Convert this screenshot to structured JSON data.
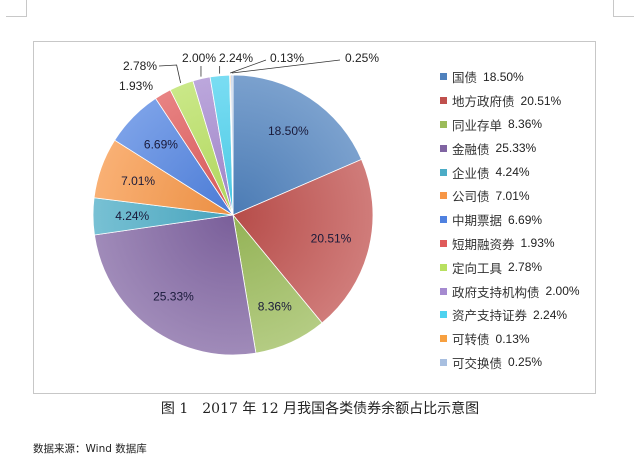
{
  "chart_data": {
    "type": "pie",
    "title": "",
    "start_angle": "12 o'clock, clockwise",
    "categories": [
      "国债",
      "地方政府债",
      "同业存单",
      "金融债",
      "企业债",
      "公司债",
      "中期票据",
      "短期融资券",
      "定向工具",
      "政府支持机构债",
      "资产支持证券",
      "可转债",
      "可交换债"
    ],
    "values": [
      18.5,
      20.51,
      8.36,
      25.33,
      4.24,
      7.01,
      6.69,
      1.93,
      2.78,
      2.0,
      2.24,
      0.13,
      0.25
    ],
    "labels": [
      "18.50%",
      "20.51%",
      "8.36%",
      "25.33%",
      "4.24%",
      "7.01%",
      "6.69%",
      "1.93%",
      "2.78%",
      "2.00%",
      "2.24%",
      "0.13%",
      "0.25%"
    ],
    "colors": [
      "#4f81bd",
      "#c0504d",
      "#9bbb59",
      "#8064a2",
      "#4bacc6",
      "#f79646",
      "#4f81e0",
      "#e05a5a",
      "#b8e060",
      "#a58ad0",
      "#4dd2ef",
      "#f7a040",
      "#a8bfe0"
    ],
    "legend_position": "right"
  },
  "legend": {
    "items": [
      {
        "name": "国债",
        "value": "18.50%"
      },
      {
        "name": "地方政府债",
        "value": "20.51%"
      },
      {
        "name": "同业存单",
        "value": "8.36%"
      },
      {
        "name": "金融债",
        "value": "25.33%"
      },
      {
        "name": "企业债",
        "value": "4.24%"
      },
      {
        "name": "公司债",
        "value": "7.01%"
      },
      {
        "name": "中期票据",
        "value": "6.69%"
      },
      {
        "name": "短期融资券",
        "value": "1.93%"
      },
      {
        "name": "定向工具",
        "value": "2.78%"
      },
      {
        "name": "政府支持机构债",
        "value": "2.00%"
      },
      {
        "name": "资产支持证券",
        "value": "2.24%"
      },
      {
        "name": "可转债",
        "value": "0.13%"
      },
      {
        "name": "可交换债",
        "value": "0.25%"
      }
    ]
  },
  "caption": "图 1　2017 年 12 月我国各类债券余额占比示意图",
  "source": "数据来源：Wind 数据库"
}
